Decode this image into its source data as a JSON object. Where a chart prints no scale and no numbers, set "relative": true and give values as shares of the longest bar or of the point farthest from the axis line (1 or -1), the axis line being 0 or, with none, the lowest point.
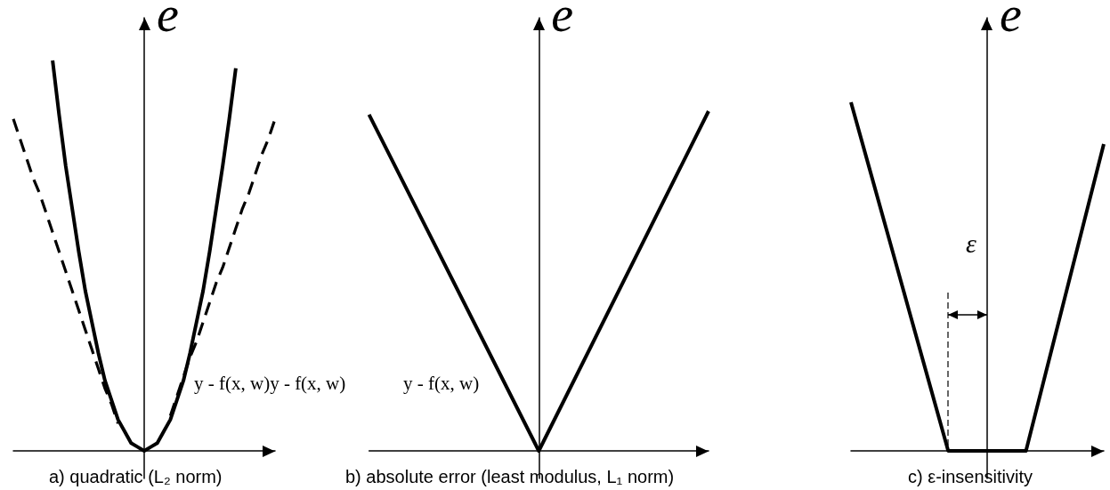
{
  "chart_data": [
    {
      "type": "line",
      "title": "a) quadratic (L₂ norm)",
      "xlabel": "y - f(x, w)y - f(x, w)",
      "ylabel": "e",
      "relative": true,
      "categories": [
        null,
        null,
        null,
        null,
        null,
        null,
        null,
        null,
        null,
        null,
        null,
        null,
        null,
        null,
        null,
        null,
        null,
        null,
        null,
        null,
        null,
        null,
        null,
        null,
        null,
        null,
        null,
        null,
        null,
        null,
        null,
        null,
        null,
        null,
        null,
        null,
        null,
        null,
        null,
        null,
        null
      ],
      "series": [
        {
          "color": "#000000",
          "values": [
            null,
            null,
            null,
            null,
            null,
            null,
            1,
            0.86,
            0.73,
            0.62,
            0.51,
            0.41,
            0.33,
            0.25,
            0.18,
            0.13,
            0.08,
            0.05,
            0.02,
            0.01,
            0,
            0.01,
            0.02,
            0.05,
            0.08,
            0.13,
            0.18,
            0.25,
            0.33,
            0.41,
            0.51,
            0.62,
            0.73,
            0.85,
            0.98,
            null,
            null,
            null,
            null,
            null,
            null
          ]
        },
        {
          "color": "#000000",
          "line_style": "dashed",
          "values": [
            0.85,
            0.8,
            0.75,
            0.7,
            0.66,
            0.61,
            0.56,
            0.51,
            0.46,
            0.41,
            0.36,
            0.31,
            0.26,
            0.21,
            0.16,
            0.12,
            0.07,
            null,
            null,
            null,
            null,
            null,
            null,
            null,
            0.09,
            0.14,
            0.19,
            0.24,
            0.28,
            0.33,
            0.38,
            0.43,
            0.47,
            0.52,
            0.57,
            0.62,
            0.66,
            0.71,
            0.76,
            0.8,
            0.85
          ]
        }
      ]
    },
    {
      "type": "line",
      "title": "b) absolute error (least modulus, L₁ norm)",
      "xlabel": "y - f(x, w)",
      "ylabel": "e",
      "relative": true,
      "categories": [
        null,
        null,
        null
      ],
      "series": [
        {
          "color": "#000000",
          "values": [
            0.99,
            0,
            1
          ]
        }
      ]
    },
    {
      "type": "line",
      "title": "c) ε-insensitivity",
      "ylabel": "e",
      "relative": true,
      "annotations": [
        "ε"
      ],
      "categories": [
        null,
        null,
        null,
        null,
        null,
        null,
        null,
        null,
        null,
        null,
        null,
        null,
        null,
        null
      ],
      "series": [
        {
          "color": "#000000",
          "values": [
            1,
            0.8,
            0.6,
            0.4,
            0.2,
            0,
            0,
            0,
            0,
            0,
            0.22,
            0.44,
            0.66,
            0.88
          ]
        }
      ]
    }
  ]
}
